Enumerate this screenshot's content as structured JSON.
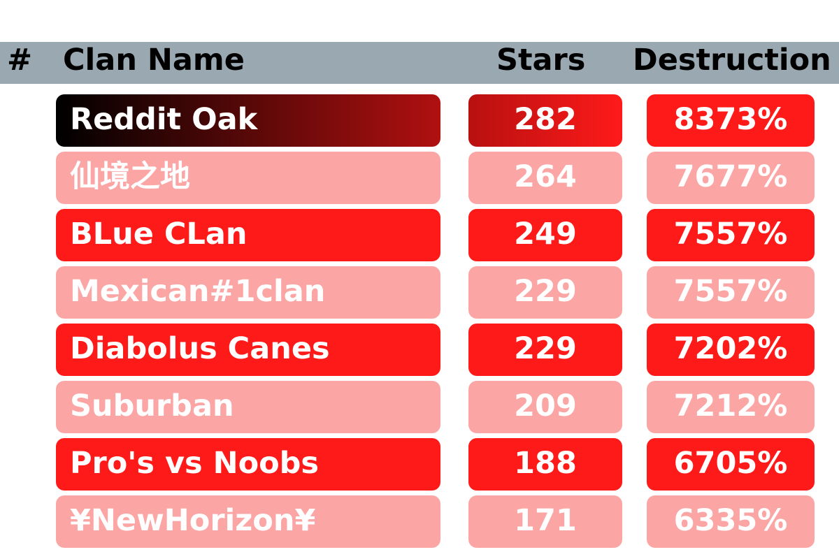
{
  "header": {
    "rank": "#",
    "clan_name": "Clan Name",
    "stars": "Stars",
    "destruction": "Destruction"
  },
  "colors": {
    "header_bg": "#9aa8b2",
    "row_primary": "#ff1a1a",
    "row_secondary": "#fca5a5",
    "text": "#ffffff",
    "first_row_name_gradient": [
      "#000000",
      "#b01010"
    ],
    "first_row_stars_gradient": [
      "#b81010",
      "#ff1a1a"
    ]
  },
  "rows": [
    {
      "name": "Reddit Oak",
      "stars": "282",
      "destruction": "8373%",
      "style": "top"
    },
    {
      "name": "仙境之地",
      "stars": "264",
      "destruction": "7677%",
      "style": "secondary"
    },
    {
      "name": "BLue CLan",
      "stars": "249",
      "destruction": "7557%",
      "style": "primary"
    },
    {
      "name": "Mexican#1clan",
      "stars": "229",
      "destruction": "7557%",
      "style": "secondary"
    },
    {
      "name": "Diabolus Canes",
      "stars": "229",
      "destruction": "7202%",
      "style": "primary"
    },
    {
      "name": "Suburban",
      "stars": "209",
      "destruction": "7212%",
      "style": "secondary"
    },
    {
      "name": "Pro's vs Noobs",
      "stars": "188",
      "destruction": "6705%",
      "style": "primary"
    },
    {
      "name": "¥NewHorizon¥",
      "stars": "171",
      "destruction": "6335%",
      "style": "secondary"
    }
  ]
}
